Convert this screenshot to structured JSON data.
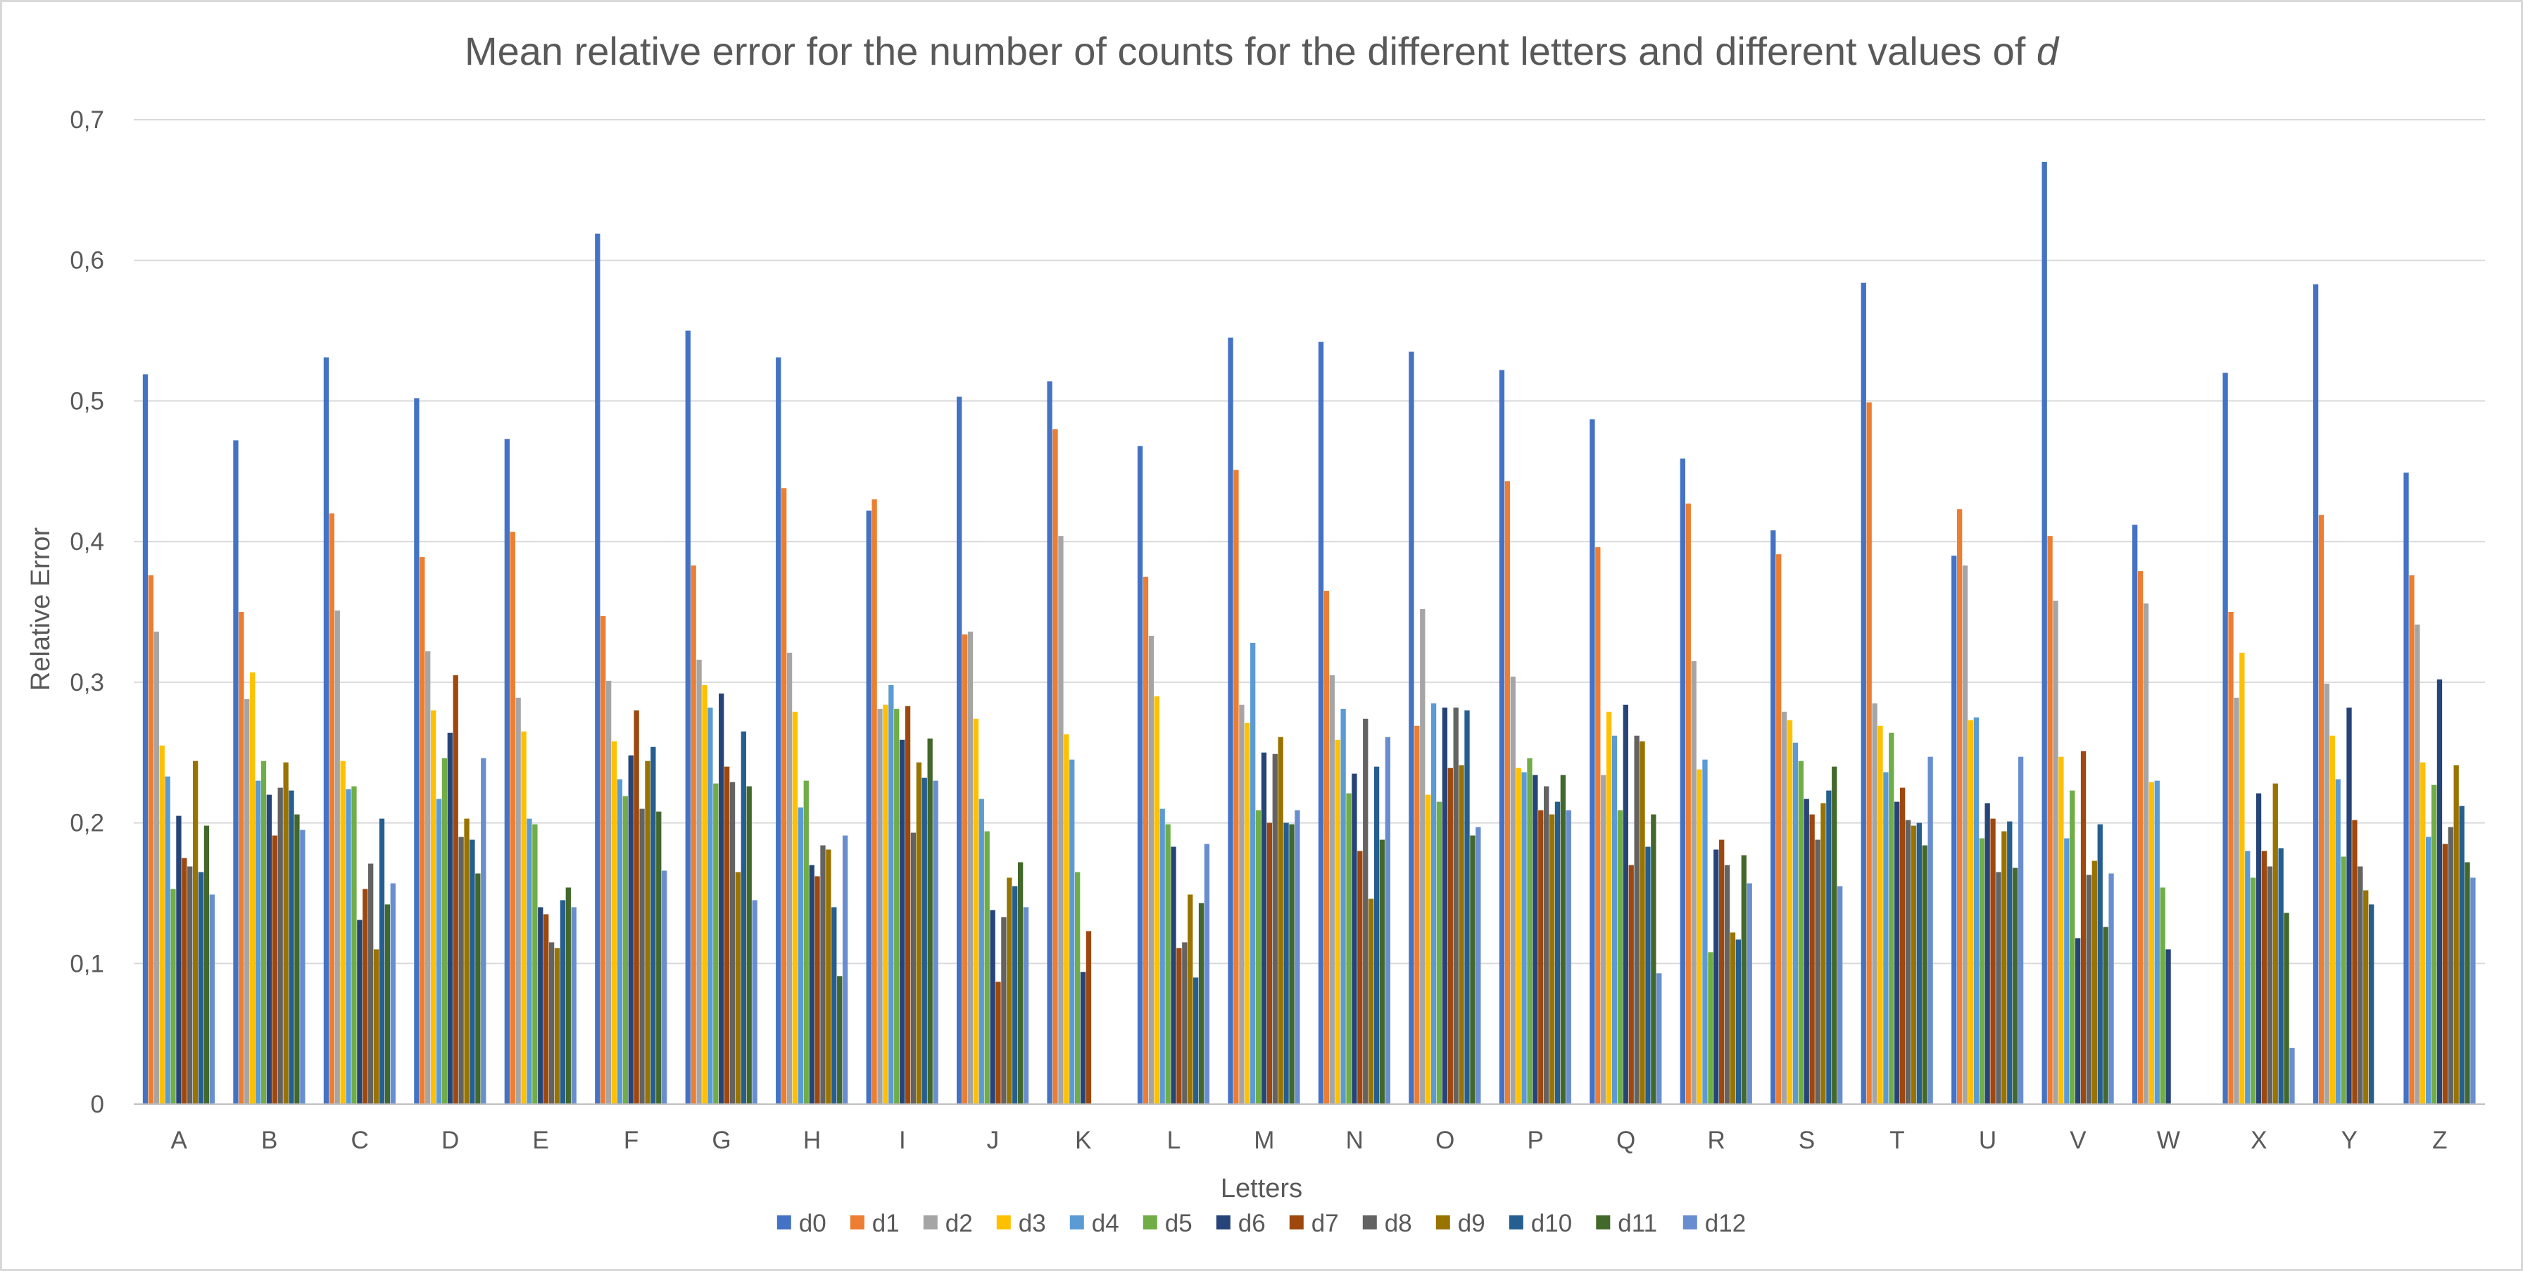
{
  "chart_data": {
    "type": "bar",
    "title_main": "Mean relative error for the number of counts for the different letters and different values of ",
    "title_italic": "d",
    "xlabel": "Letters",
    "ylabel": "Relative Error",
    "ylim": [
      0,
      0.7
    ],
    "yticks": [
      0,
      0.1,
      0.2,
      0.3,
      0.4,
      0.5,
      0.6,
      0.7
    ],
    "ytick_labels": [
      "0",
      "0,1",
      "0,2",
      "0,3",
      "0,4",
      "0,5",
      "0,6",
      "0,7"
    ],
    "grid": true,
    "legend_position": "bottom",
    "categories": [
      "A",
      "B",
      "C",
      "D",
      "E",
      "F",
      "G",
      "H",
      "I",
      "J",
      "K",
      "L",
      "M",
      "N",
      "O",
      "P",
      "Q",
      "R",
      "S",
      "T",
      "U",
      "V",
      "W",
      "X",
      "Y",
      "Z"
    ],
    "series": [
      {
        "name": "d0",
        "color": "#4472C4",
        "values": [
          0.519,
          0.472,
          0.531,
          0.502,
          0.473,
          0.619,
          0.55,
          0.531,
          0.422,
          0.503,
          0.514,
          0.468,
          0.545,
          0.542,
          0.535,
          0.522,
          0.487,
          0.459,
          0.408,
          0.584,
          0.39,
          0.67,
          0.412,
          0.52,
          0.583,
          0.449
        ]
      },
      {
        "name": "d1",
        "color": "#ED7D31",
        "values": [
          0.376,
          0.35,
          0.42,
          0.389,
          0.407,
          0.347,
          0.383,
          0.438,
          0.43,
          0.334,
          0.48,
          0.375,
          0.451,
          0.365,
          0.269,
          0.443,
          0.396,
          0.427,
          0.391,
          0.499,
          0.423,
          0.404,
          0.379,
          0.35,
          0.419,
          0.376
        ]
      },
      {
        "name": "d2",
        "color": "#A5A5A5",
        "values": [
          0.336,
          0.288,
          0.351,
          0.322,
          0.289,
          0.301,
          0.316,
          0.321,
          0.281,
          0.336,
          0.404,
          0.333,
          0.284,
          0.305,
          0.352,
          0.304,
          0.234,
          0.315,
          0.279,
          0.285,
          0.383,
          0.358,
          0.356,
          0.289,
          0.299,
          0.341
        ]
      },
      {
        "name": "d3",
        "color": "#FFC000",
        "values": [
          0.255,
          0.307,
          0.244,
          0.28,
          0.265,
          0.258,
          0.298,
          0.279,
          0.284,
          0.274,
          0.263,
          0.29,
          0.271,
          0.259,
          0.22,
          0.239,
          0.279,
          0.238,
          0.273,
          0.269,
          0.273,
          0.247,
          0.229,
          0.321,
          0.262,
          0.243
        ]
      },
      {
        "name": "d4",
        "color": "#5B9BD5",
        "values": [
          0.233,
          0.23,
          0.224,
          0.217,
          0.203,
          0.231,
          0.282,
          0.211,
          0.298,
          0.217,
          0.245,
          0.21,
          0.328,
          0.281,
          0.285,
          0.236,
          0.262,
          0.245,
          0.257,
          0.236,
          0.275,
          0.189,
          0.23,
          0.18,
          0.231,
          0.19
        ]
      },
      {
        "name": "d5",
        "color": "#70AD47",
        "values": [
          0.153,
          0.244,
          0.226,
          0.246,
          0.199,
          0.219,
          0.228,
          0.23,
          0.281,
          0.194,
          0.165,
          0.199,
          0.209,
          0.221,
          0.215,
          0.246,
          0.209,
          0.108,
          0.244,
          0.264,
          0.189,
          0.223,
          0.154,
          0.161,
          0.176,
          0.227
        ]
      },
      {
        "name": "d6",
        "color": "#264478",
        "values": [
          0.205,
          0.22,
          0.131,
          0.264,
          0.14,
          0.248,
          0.292,
          0.17,
          0.259,
          0.138,
          0.094,
          0.183,
          0.25,
          0.235,
          0.282,
          0.234,
          0.284,
          0.181,
          0.217,
          0.215,
          0.214,
          0.118,
          0.11,
          0.221,
          0.282,
          0.302
        ]
      },
      {
        "name": "d7",
        "color": "#9E480E",
        "values": [
          0.175,
          0.191,
          0.153,
          0.305,
          0.135,
          0.28,
          0.24,
          0.162,
          0.283,
          0.087,
          0.123,
          0.111,
          0.2,
          0.18,
          0.239,
          0.209,
          0.17,
          0.188,
          0.206,
          0.225,
          0.203,
          0.251,
          null,
          0.18,
          0.202,
          0.185
        ]
      },
      {
        "name": "d8",
        "color": "#636363",
        "values": [
          0.169,
          0.225,
          0.171,
          0.19,
          0.115,
          0.21,
          0.229,
          0.184,
          0.193,
          0.133,
          null,
          0.115,
          0.249,
          0.274,
          0.282,
          0.226,
          0.262,
          0.17,
          0.188,
          0.202,
          0.165,
          0.163,
          null,
          0.169,
          0.169,
          0.197
        ]
      },
      {
        "name": "d9",
        "color": "#997300",
        "values": [
          0.244,
          0.243,
          0.11,
          0.203,
          0.111,
          0.244,
          0.165,
          0.181,
          0.243,
          0.161,
          null,
          0.149,
          0.261,
          0.146,
          0.241,
          0.206,
          0.258,
          0.122,
          0.214,
          0.198,
          0.194,
          0.173,
          null,
          0.228,
          0.152,
          0.241
        ]
      },
      {
        "name": "d10",
        "color": "#255E91",
        "values": [
          0.165,
          0.223,
          0.203,
          0.188,
          0.145,
          0.254,
          0.265,
          0.14,
          0.232,
          0.155,
          null,
          0.09,
          0.2,
          0.24,
          0.28,
          0.215,
          0.183,
          0.117,
          0.223,
          0.2,
          0.201,
          0.199,
          null,
          0.182,
          0.142,
          0.212
        ]
      },
      {
        "name": "d11",
        "color": "#43682B",
        "values": [
          0.198,
          0.206,
          0.142,
          0.164,
          0.154,
          0.208,
          0.226,
          0.091,
          0.26,
          0.172,
          null,
          0.143,
          0.199,
          0.188,
          0.191,
          0.234,
          0.206,
          0.177,
          0.24,
          0.184,
          0.168,
          0.126,
          null,
          0.136,
          null,
          0.172
        ]
      },
      {
        "name": "d12",
        "color": "#698ED0",
        "values": [
          0.149,
          0.195,
          0.157,
          0.246,
          0.14,
          0.166,
          0.145,
          0.191,
          0.23,
          0.14,
          null,
          0.185,
          0.209,
          0.261,
          0.197,
          0.209,
          0.093,
          0.157,
          0.155,
          0.247,
          0.247,
          0.164,
          null,
          0.04,
          null,
          0.161
        ]
      }
    ]
  }
}
